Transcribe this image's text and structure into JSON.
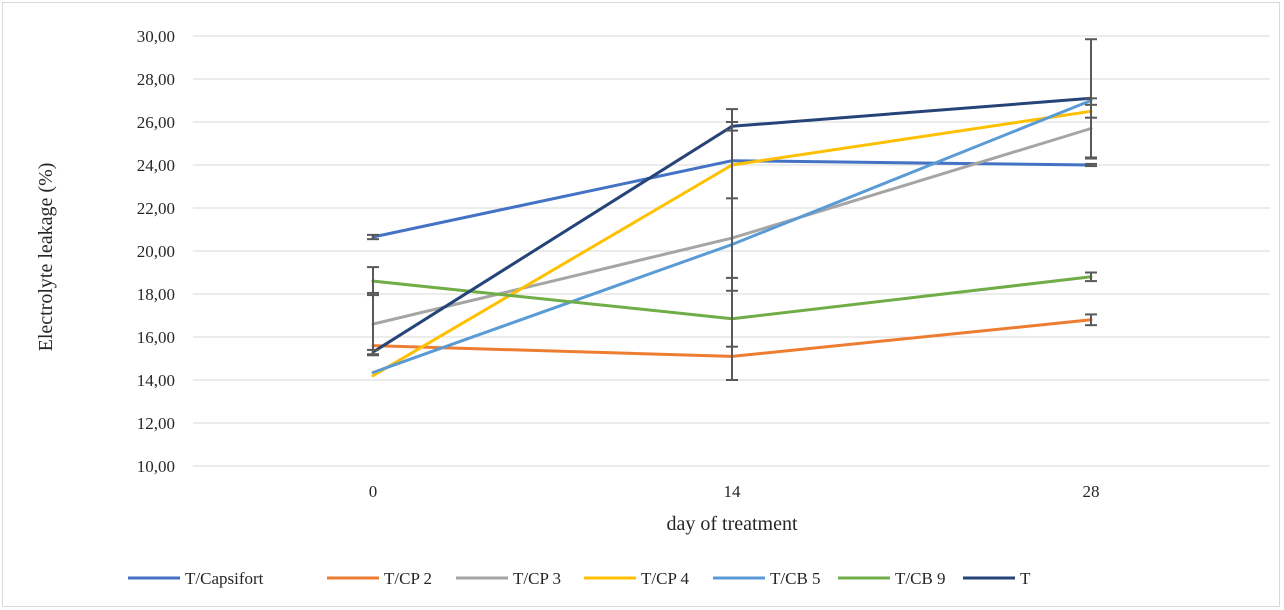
{
  "chart_data": {
    "type": "line",
    "xlabel": "day of treatment",
    "ylabel": "Electrolyte leakage (%)",
    "categories": [
      "0",
      "14",
      "28"
    ],
    "ylim": [
      10,
      30
    ],
    "yticks": [
      "10,00",
      "12,00",
      "14,00",
      "16,00",
      "18,00",
      "20,00",
      "22,00",
      "24,00",
      "26,00",
      "28,00",
      "30,00"
    ],
    "grid": true,
    "legend_position": "bottom",
    "series": [
      {
        "name": "T/Capsifort",
        "color": "#4472C4",
        "values": [
          20.65,
          24.2,
          24.0
        ],
        "errors": [
          0.1,
          0.0,
          0.05
        ]
      },
      {
        "name": "T/CP 2",
        "color": "#ED7D31",
        "values": [
          15.6,
          15.1,
          16.8
        ],
        "errors": [
          0.0,
          0.0,
          0.25
        ]
      },
      {
        "name": "T/CP 3",
        "color": "#A5A5A5",
        "values": [
          16.6,
          20.6,
          25.7
        ],
        "errors": [
          1.45,
          1.85,
          1.4
        ]
      },
      {
        "name": "T/CP 4",
        "color": "#FFC000",
        "values": [
          14.2,
          24.0,
          26.5
        ],
        "errors": [
          0.0,
          0.0,
          0.3
        ]
      },
      {
        "name": "T/CB 5",
        "color": "#5B9BD5",
        "values": [
          14.35,
          20.3,
          27.0
        ],
        "errors": [
          0.0,
          6.3,
          0.0
        ]
      },
      {
        "name": "T/CB 9",
        "color": "#70AD47",
        "values": [
          18.6,
          16.85,
          18.8
        ],
        "errors": [
          0.65,
          1.3,
          0.2
        ]
      },
      {
        "name": "T",
        "color": "#264478",
        "values": [
          15.3,
          25.8,
          27.1
        ],
        "errors": [
          0.1,
          0.2,
          2.75
        ]
      }
    ]
  }
}
